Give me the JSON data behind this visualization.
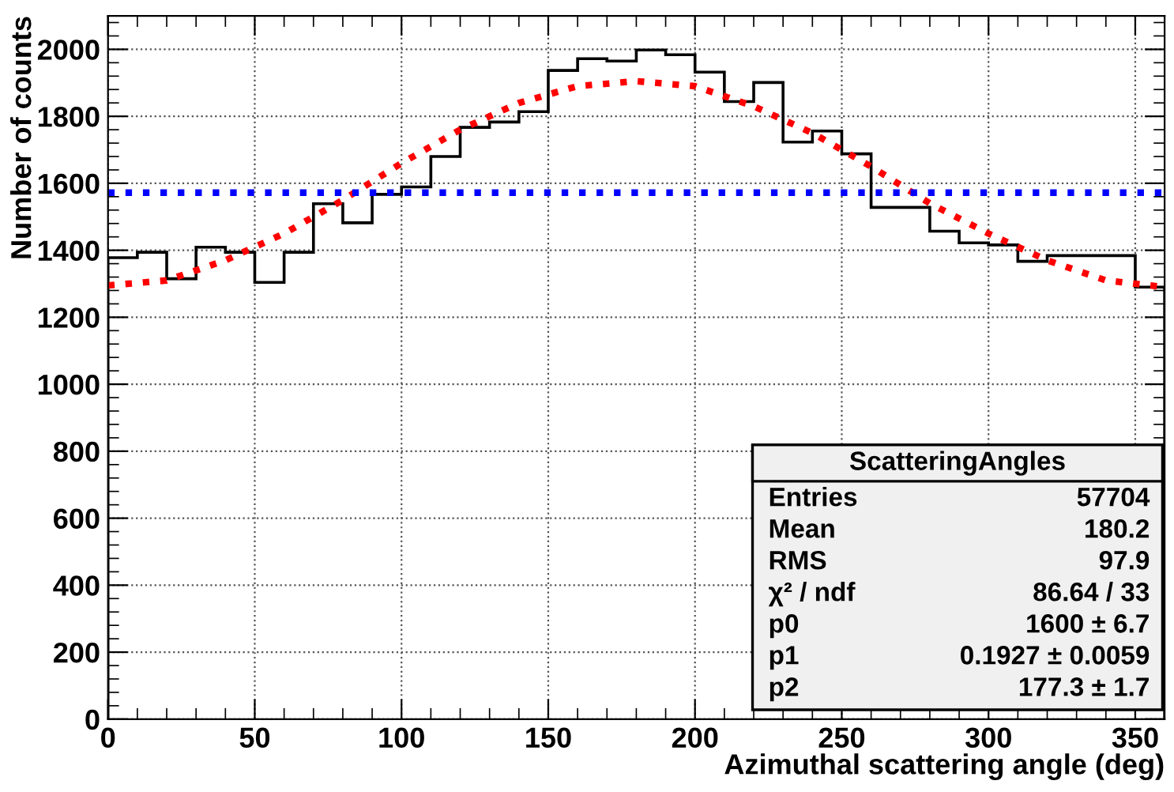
{
  "chart_data": {
    "type": "histogram",
    "xlabel": "Azimuthal scattering angle (deg)",
    "ylabel": "Number of counts",
    "xlim": [
      0,
      360
    ],
    "ylim": [
      0,
      2100
    ],
    "xticks": [
      0,
      50,
      100,
      150,
      200,
      250,
      300,
      350
    ],
    "yticks": [
      0,
      200,
      400,
      600,
      800,
      1000,
      1200,
      1400,
      1600,
      1800,
      2000
    ],
    "grid": true,
    "legend": false,
    "series": [
      {
        "color": "#000000",
        "bins": [
          0,
          10,
          20,
          30,
          40,
          50,
          60,
          70,
          80,
          90,
          100,
          110,
          120,
          130,
          140,
          150,
          160,
          170,
          180,
          190,
          200,
          210,
          220,
          230,
          240,
          250,
          260,
          270,
          280,
          290,
          300,
          310,
          320,
          330,
          340,
          350,
          360
        ],
        "values": [
          1378,
          1394,
          1315,
          1409,
          1394,
          1304,
          1394,
          1539,
          1482,
          1567,
          1589,
          1680,
          1767,
          1783,
          1814,
          1937,
          1972,
          1965,
          1998,
          1984,
          1932,
          1844,
          1901,
          1723,
          1756,
          1688,
          1528,
          1528,
          1457,
          1422,
          1416,
          1367,
          1384,
          1384,
          1384,
          1290
        ]
      },
      {
        "type": "line",
        "color": "#ff0000",
        "line_style": "dotted",
        "x": [
          0,
          20,
          40,
          60,
          80,
          100,
          120,
          140,
          160,
          180,
          200,
          220,
          240,
          260,
          280,
          300,
          320,
          340,
          360
        ],
        "values": [
          1295,
          1310,
          1370,
          1450,
          1550,
          1660,
          1760,
          1840,
          1890,
          1905,
          1890,
          1830,
          1750,
          1650,
          1540,
          1450,
          1370,
          1310,
          1290
        ]
      },
      {
        "type": "line",
        "color": "#0000ff",
        "line_style": "dotted",
        "x": [
          0,
          360
        ],
        "values": [
          1572,
          1572
        ]
      }
    ],
    "annotations": [
      "ScatteringAngles",
      "Entries",
      "57704",
      "Mean",
      "180.2",
      "RMS",
      "97.9",
      "χ² / ndf",
      "86.64 / 33",
      "p0",
      "1600 ± 6.7",
      "p1",
      "0.1927 ± 0.0059",
      "p2",
      "177.3 ± 1.7"
    ]
  }
}
